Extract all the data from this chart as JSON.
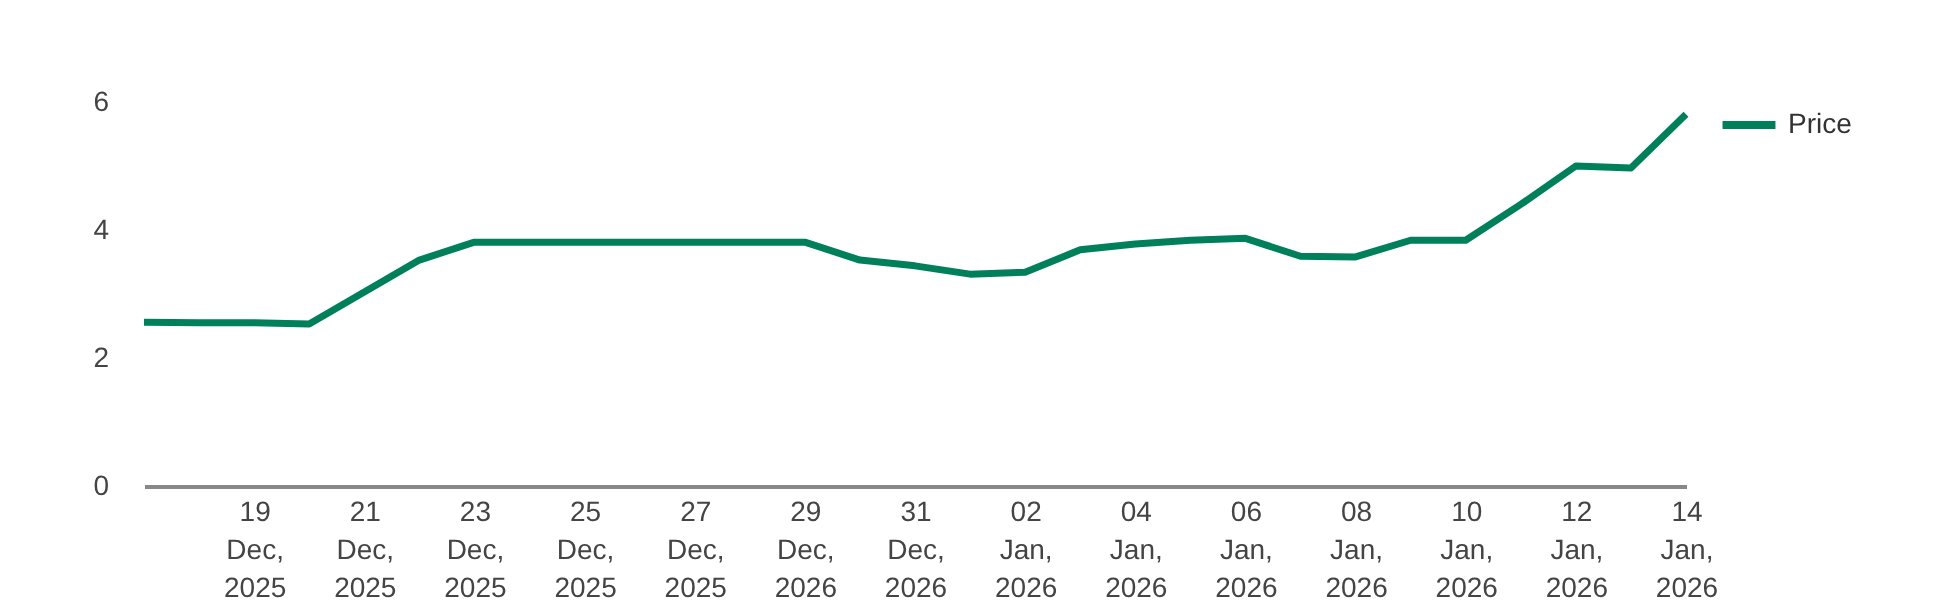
{
  "chart_data": {
    "type": "line",
    "categories": [
      null,
      null,
      "19 Dec, 2025",
      null,
      "21 Dec, 2025",
      null,
      "23 Dec, 2025",
      null,
      "25 Dec, 2025",
      null,
      "27 Dec, 2025",
      null,
      "29 Dec, 2026",
      null,
      "31 Dec, 2026",
      null,
      "02 Jan, 2026",
      null,
      "04 Jan, 2026",
      null,
      "06 Jan, 2026",
      null,
      "08 Jan, 2026",
      null,
      "10 Jan, 2026",
      null,
      "12 Jan, 2026",
      null,
      "14 Jan, 2026"
    ],
    "series": [
      {
        "name": "Price",
        "color": "#00805a",
        "values": [
          2.56,
          2.55,
          2.55,
          2.53,
          3.03,
          3.53,
          3.81,
          3.81,
          3.81,
          3.81,
          3.81,
          3.81,
          3.81,
          3.53,
          3.44,
          3.31,
          3.34,
          3.69,
          3.78,
          3.84,
          3.87,
          3.59,
          3.58,
          3.84,
          3.84,
          4.4,
          5.0,
          4.97,
          5.81
        ]
      }
    ],
    "ylim": [
      0,
      6
    ],
    "yticks": [
      0,
      2,
      4,
      6
    ],
    "grid": false,
    "legend": "top right",
    "marker": "none",
    "line_style": "solid"
  }
}
